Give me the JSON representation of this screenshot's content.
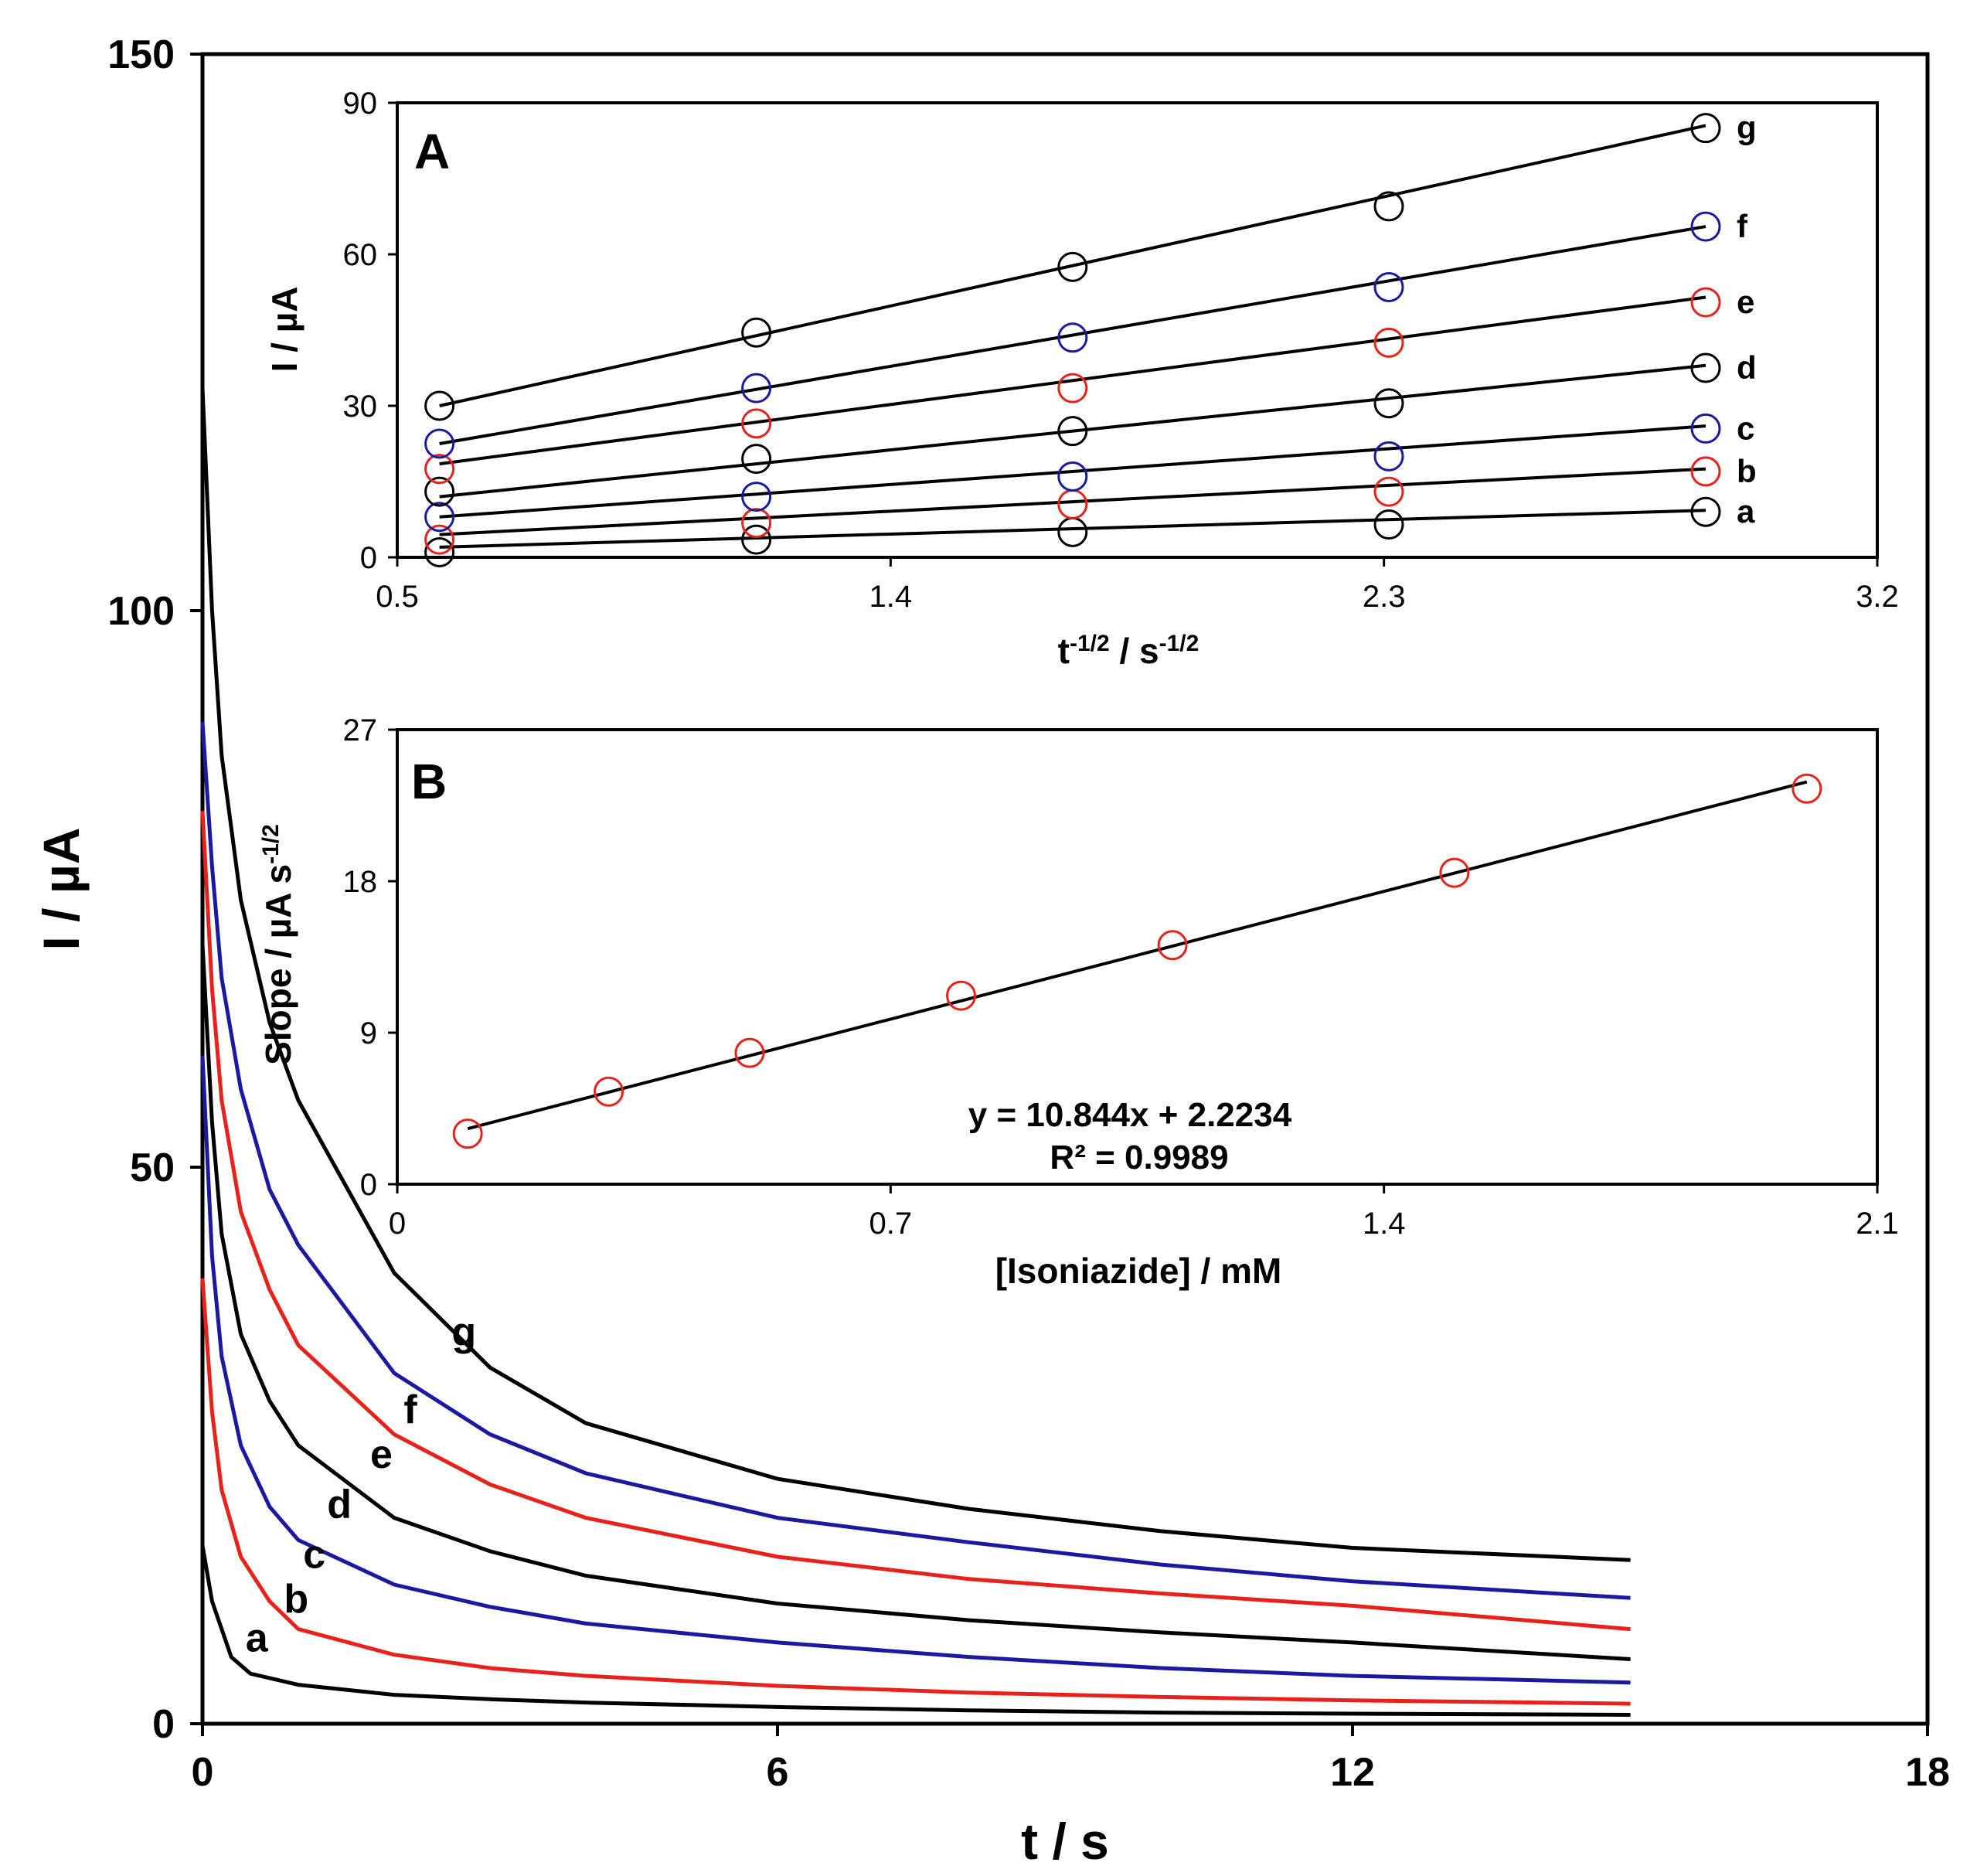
{
  "chart_data": [
    {
      "id": "main",
      "type": "line",
      "title": "",
      "xlabel": "t / s",
      "ylabel": "I / µA",
      "xlim": [
        0,
        18
      ],
      "ylim": [
        0,
        150
      ],
      "xticks": [
        0,
        6,
        12,
        18
      ],
      "yticks": [
        0,
        50,
        100,
        150
      ],
      "xtick_labels": [
        "0",
        "6",
        "12",
        "18"
      ],
      "ytick_labels": [
        "0",
        "50",
        "100",
        "150"
      ],
      "series": [
        {
          "name": "a",
          "color": "#000000",
          "values": [
            [
              0.0,
              16.0
            ],
            [
              0.1,
              11.0
            ],
            [
              0.3,
              6.0
            ],
            [
              0.5,
              4.5
            ],
            [
              1,
              3.5
            ],
            [
              2,
              2.6
            ],
            [
              3,
              2.2
            ],
            [
              4,
              1.9
            ],
            [
              6,
              1.5
            ],
            [
              8,
              1.2
            ],
            [
              10,
              1.0
            ],
            [
              12,
              0.9
            ],
            [
              14.9,
              0.8
            ]
          ]
        },
        {
          "name": "b",
          "color": "#e8221b",
          "values": [
            [
              0.0,
              40.0
            ],
            [
              0.1,
              28.0
            ],
            [
              0.2,
              21.0
            ],
            [
              0.4,
              15.0
            ],
            [
              0.7,
              11.0
            ],
            [
              1,
              8.5
            ],
            [
              2,
              6.2
            ],
            [
              3,
              5.0
            ],
            [
              4,
              4.3
            ],
            [
              6,
              3.4
            ],
            [
              8,
              2.8
            ],
            [
              10,
              2.4
            ],
            [
              12,
              2.1
            ],
            [
              14.9,
              1.8
            ]
          ]
        },
        {
          "name": "c",
          "color": "#1a1aa0",
          "values": [
            [
              0.0,
              60.0
            ],
            [
              0.1,
              42.0
            ],
            [
              0.2,
              33.0
            ],
            [
              0.4,
              25.0
            ],
            [
              0.7,
              19.5
            ],
            [
              1,
              16.5
            ],
            [
              2,
              12.5
            ],
            [
              3,
              10.5
            ],
            [
              4,
              9.0
            ],
            [
              6,
              7.3
            ],
            [
              8,
              6.0
            ],
            [
              10,
              5.0
            ],
            [
              12,
              4.3
            ],
            [
              14.9,
              3.7
            ]
          ]
        },
        {
          "name": "d",
          "color": "#000000",
          "values": [
            [
              0.0,
              70.0
            ],
            [
              0.1,
              54.0
            ],
            [
              0.2,
              44.0
            ],
            [
              0.4,
              35.0
            ],
            [
              0.7,
              29.0
            ],
            [
              1,
              25.0
            ],
            [
              2,
              18.5
            ],
            [
              3,
              15.5
            ],
            [
              4,
              13.3
            ],
            [
              6,
              10.8
            ],
            [
              8,
              9.3
            ],
            [
              10,
              8.2
            ],
            [
              12,
              7.3
            ],
            [
              14.9,
              5.8
            ]
          ]
        },
        {
          "name": "e",
          "color": "#e8221b",
          "values": [
            [
              0.0,
              82.0
            ],
            [
              0.1,
              66.0
            ],
            [
              0.2,
              56.0
            ],
            [
              0.4,
              46.0
            ],
            [
              0.7,
              39.0
            ],
            [
              1,
              34.0
            ],
            [
              2,
              26.0
            ],
            [
              3,
              21.5
            ],
            [
              4,
              18.5
            ],
            [
              6,
              15.0
            ],
            [
              8,
              13.0
            ],
            [
              10,
              11.7
            ],
            [
              12,
              10.6
            ],
            [
              14.9,
              8.5
            ]
          ]
        },
        {
          "name": "f",
          "color": "#1a1aa0",
          "values": [
            [
              0.0,
              90.0
            ],
            [
              0.1,
              77.0
            ],
            [
              0.2,
              67.0
            ],
            [
              0.4,
              57.0
            ],
            [
              0.7,
              48.0
            ],
            [
              1,
              43.0
            ],
            [
              2,
              31.5
            ],
            [
              3,
              26.0
            ],
            [
              4,
              22.5
            ],
            [
              6,
              18.5
            ],
            [
              8,
              16.3
            ],
            [
              10,
              14.3
            ],
            [
              12,
              12.8
            ],
            [
              14.9,
              11.3
            ]
          ]
        },
        {
          "name": "g",
          "color": "#000000",
          "values": [
            [
              0.0,
              120.0
            ],
            [
              0.1,
              100.0
            ],
            [
              0.2,
              87.0
            ],
            [
              0.4,
              74.0
            ],
            [
              0.7,
              63.0
            ],
            [
              1,
              56.0
            ],
            [
              2,
              40.5
            ],
            [
              3,
              32.0
            ],
            [
              4,
              27.0
            ],
            [
              6,
              22.0
            ],
            [
              8,
              19.3
            ],
            [
              10,
              17.3
            ],
            [
              12,
              15.8
            ],
            [
              14.9,
              14.7
            ]
          ]
        }
      ],
      "curve_labels": [
        {
          "text": "a",
          "x": 0.45,
          "y": 6.5
        },
        {
          "text": "b",
          "x": 0.85,
          "y": 10.0
        },
        {
          "text": "c",
          "x": 1.05,
          "y": 14.0
        },
        {
          "text": "d",
          "x": 1.3,
          "y": 18.5
        },
        {
          "text": "e",
          "x": 1.75,
          "y": 23.0
        },
        {
          "text": "f",
          "x": 2.1,
          "y": 27.0
        },
        {
          "text": "g",
          "x": 2.6,
          "y": 34.0
        }
      ]
    },
    {
      "id": "A",
      "type": "scatter",
      "panel_letter": "A",
      "xlabel_base": "t",
      "xlabel_exp1": "-1/2",
      "xlabel_mid": " / s",
      "xlabel_exp2": "-1/2",
      "ylabel": "I / µA",
      "xlim": [
        0.5,
        3.2
      ],
      "ylim": [
        0,
        90
      ],
      "xticks": [
        0.5,
        1.4,
        2.3,
        3.2
      ],
      "yticks": [
        0,
        30,
        60,
        90
      ],
      "xtick_labels": [
        "0.5",
        "1.4",
        "2.3",
        "3.2"
      ],
      "ytick_labels": [
        "0",
        "30",
        "60",
        "90"
      ],
      "x": [
        0.577,
        1.155,
        1.732,
        2.309,
        2.887
      ],
      "series": [
        {
          "name": "a",
          "color": "#000000",
          "values": [
            1.0,
            3.5,
            5.0,
            6.5,
            9.0
          ],
          "fit": [
            2.0,
            9.3
          ]
        },
        {
          "name": "b",
          "color": "#e8221b",
          "values": [
            3.5,
            6.8,
            10.5,
            13.0,
            17.0
          ],
          "fit": [
            4.5,
            17.5
          ]
        },
        {
          "name": "c",
          "color": "#1a1aa0",
          "values": [
            8.0,
            12.0,
            16.0,
            20.0,
            25.5
          ],
          "fit": [
            8.0,
            26.0
          ]
        },
        {
          "name": "d",
          "color": "#000000",
          "values": [
            13.0,
            19.5,
            25.0,
            30.5,
            37.5
          ],
          "fit": [
            12.0,
            38.0
          ]
        },
        {
          "name": "e",
          "color": "#e8221b",
          "values": [
            17.5,
            26.5,
            33.5,
            42.5,
            50.5
          ],
          "fit": [
            18.5,
            51.5
          ]
        },
        {
          "name": "f",
          "color": "#1a1aa0",
          "values": [
            22.5,
            33.5,
            43.5,
            53.5,
            65.5
          ],
          "fit": [
            22.5,
            65.5
          ]
        },
        {
          "name": "g",
          "color": "#000000",
          "values": [
            30.0,
            44.5,
            57.5,
            69.5,
            85.0
          ],
          "fit": [
            30.0,
            85.5
          ]
        }
      ]
    },
    {
      "id": "B",
      "type": "scatter",
      "panel_letter": "B",
      "xlabel": "[Isoniazide] / mM",
      "ylabel_main": "Slope / µA s",
      "ylabel_exp": "-1/2",
      "xlim": [
        0,
        2.1
      ],
      "ylim": [
        0,
        27
      ],
      "xticks": [
        0,
        0.7,
        1.4,
        2.1
      ],
      "yticks": [
        0,
        9,
        18,
        27
      ],
      "xtick_labels": [
        "0",
        "0.7",
        "1.4",
        "2.1"
      ],
      "ytick_labels": [
        "0",
        "9",
        "18",
        "27"
      ],
      "series": [
        {
          "name": "slope",
          "color": "#e8221b",
          "x": [
            0.1,
            0.3,
            0.5,
            0.8,
            1.1,
            1.5,
            2.0
          ],
          "values": [
            3.0,
            5.5,
            7.8,
            11.2,
            14.2,
            18.5,
            23.5
          ]
        }
      ],
      "fit": {
        "x": [
          0.1,
          2.0
        ],
        "y": [
          3.3,
          23.9
        ]
      },
      "equation": "y = 10.844x  + 2.2234",
      "r_squared": "R² = 0.9989"
    }
  ]
}
